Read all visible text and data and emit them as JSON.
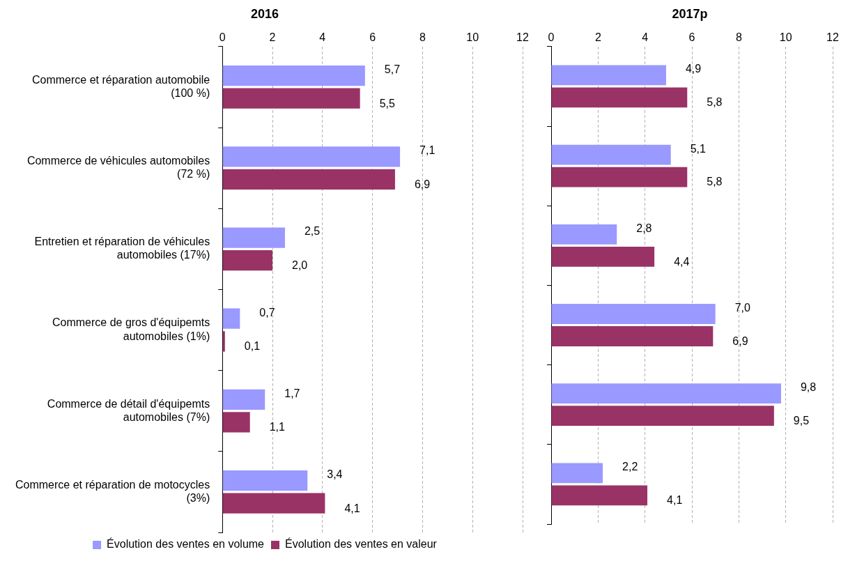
{
  "chart_data": [
    {
      "type": "bar",
      "orientation": "horizontal",
      "title": "2016",
      "categories": [
        "Commerce et réparation automobile (100 %)",
        "Commerce de véhicules automobiles (72 %)",
        "Entretien et réparation de véhicules automobiles (17%)",
        "Commerce de gros d'équipemts automobiles (1%)",
        "Commerce de détail d'équipemts automobiles (7%)",
        "Commerce et réparation de motocycles (3%)"
      ],
      "series": [
        {
          "name": "Évolution des ventes en volume",
          "color": "#9999ff",
          "values": [
            5.7,
            7.1,
            2.5,
            0.7,
            1.7,
            3.4
          ],
          "value_labels": [
            "5,7",
            "7,1",
            "2,5",
            "0,7",
            "1,7",
            "3,4"
          ]
        },
        {
          "name": "Évolution des ventes en valeur",
          "color": "#993366",
          "values": [
            5.5,
            6.9,
            2.0,
            0.1,
            1.1,
            4.1
          ],
          "value_labels": [
            "5,5",
            "6,9",
            "2,0",
            "0,1",
            "1,1",
            "4,1"
          ]
        }
      ],
      "xlim": [
        0,
        12
      ],
      "xticks": [
        0,
        2,
        4,
        6,
        8,
        10,
        12
      ],
      "grid": "x",
      "legend": "bottom"
    },
    {
      "type": "bar",
      "orientation": "horizontal",
      "title": "2017p",
      "categories": [
        null,
        null,
        null,
        null,
        null,
        null
      ],
      "series": [
        {
          "color": "#9999ff",
          "values": [
            4.9,
            5.1,
            2.8,
            7.0,
            9.8,
            2.2
          ],
          "value_labels": [
            "4,9",
            "5,1",
            "2,8",
            "7,0",
            "9,8",
            "2,2"
          ]
        },
        {
          "color": "#993366",
          "values": [
            5.8,
            5.8,
            4.4,
            6.9,
            9.5,
            4.1
          ],
          "value_labels": [
            "5,8",
            "5,8",
            "4,4",
            "6,9",
            "9,5",
            "4,1"
          ]
        }
      ],
      "xlim": [
        0,
        12
      ],
      "xticks": [
        0,
        2,
        4,
        6,
        8,
        10,
        12
      ],
      "grid": "x",
      "tick_labels": "x",
      "legend": false
    }
  ]
}
